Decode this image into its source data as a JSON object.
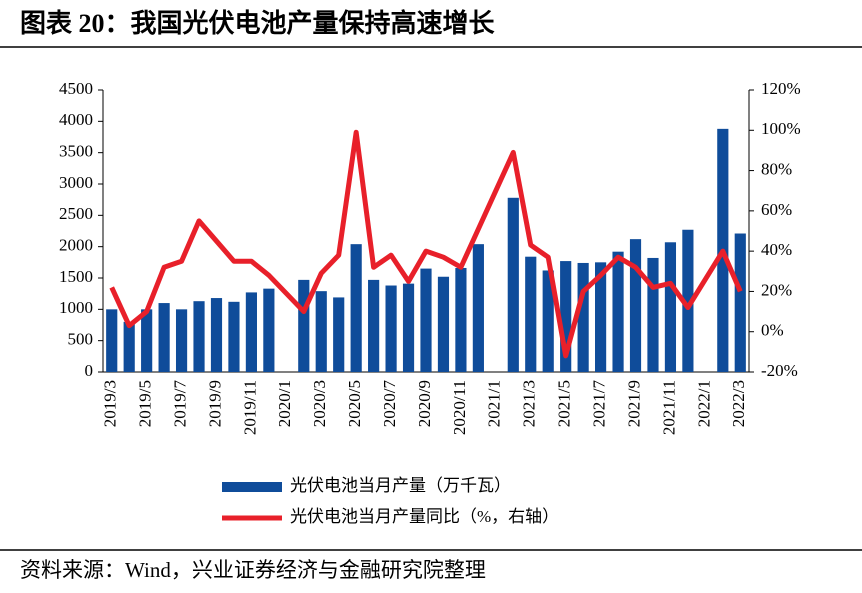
{
  "chart_data": {
    "type": "bar_line",
    "title": "图表 20：我国光伏电池产量保持高速增长",
    "source": "资料来源：Wind，兴业证券经济与金融研究院整理",
    "categories": [
      "2019/3",
      null,
      "2019/5",
      null,
      "2019/7",
      null,
      "2019/9",
      null,
      "2019/11",
      null,
      "2020/1",
      null,
      "2020/3",
      null,
      "2020/5",
      null,
      "2020/7",
      null,
      "2020/9",
      null,
      "2020/11",
      null,
      "2021/1",
      null,
      "2021/3",
      null,
      "2021/5",
      null,
      "2021/7",
      null,
      "2021/9",
      null,
      "2021/11",
      null,
      "2022/1",
      null,
      "2022/3"
    ],
    "series": [
      {
        "name": "光伏电池当月产量（万千瓦）",
        "type": "bar",
        "color": "#0f4c9a",
        "values": [
          1000,
          800,
          1000,
          1100,
          1000,
          1130,
          1180,
          1120,
          1270,
          1330,
          null,
          1470,
          1290,
          1190,
          2040,
          1470,
          1380,
          1410,
          1650,
          1520,
          1660,
          2040,
          null,
          2780,
          1840,
          1620,
          1770,
          1740,
          1750,
          1920,
          2120,
          1820,
          2070,
          2270,
          null,
          3880,
          2210
        ]
      },
      {
        "name": "光伏电池当月产量同比（%，右轴）",
        "type": "line",
        "axis": "y2",
        "color": "#e8202a",
        "values": [
          22,
          3,
          10,
          32,
          35,
          55,
          45,
          35,
          35,
          28,
          19,
          10,
          29,
          38,
          99,
          32,
          38,
          25,
          40,
          37,
          32,
          51,
          70,
          89,
          43,
          37,
          -12,
          20,
          28,
          37,
          32,
          22,
          24,
          12,
          26,
          40,
          20
        ]
      }
    ],
    "ylim": [
      0,
      4500
    ],
    "yticks": [
      0,
      500,
      1000,
      1500,
      2000,
      2500,
      3000,
      3500,
      4000,
      4500
    ],
    "y2lim": [
      -20,
      120
    ],
    "y2ticks": [
      {
        "value": -20,
        "label": "-20%"
      },
      {
        "value": 0,
        "label": "0%"
      },
      {
        "value": 20,
        "label": "20%"
      },
      {
        "value": 40,
        "label": "40%"
      },
      {
        "value": 60,
        "label": "60%"
      },
      {
        "value": 80,
        "label": "80%"
      },
      {
        "value": 100,
        "label": "100%"
      },
      {
        "value": 120,
        "label": "120%"
      }
    ]
  }
}
